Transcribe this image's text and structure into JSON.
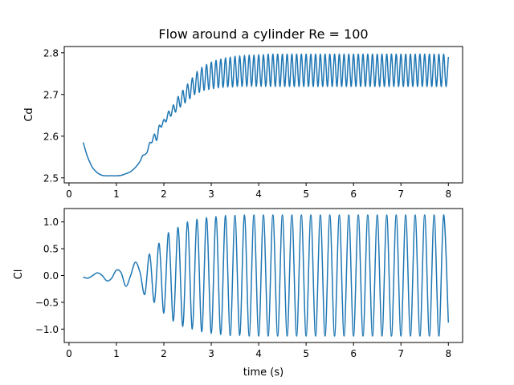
{
  "chart_data": [
    {
      "type": "line",
      "title": "Flow around a cylinder Re = 100",
      "xlabel": "",
      "ylabel": "Cd",
      "xlim": [
        -0.1,
        8.3
      ],
      "ylim": [
        2.488,
        2.815
      ],
      "x_ticks": [
        0,
        1,
        2,
        3,
        4,
        5,
        6,
        7,
        8
      ],
      "y_ticks": [
        2.5,
        2.6,
        2.7,
        2.8
      ],
      "x_tick_labels": [
        "0",
        "1",
        "2",
        "3",
        "4",
        "5",
        "6",
        "7",
        "8"
      ],
      "y_tick_labels": [
        "2.5",
        "2.6",
        "2.7",
        "2.8"
      ],
      "grid": false,
      "series": [
        {
          "color": "#1f77b4",
          "x": [
            0.3,
            0.35,
            0.4,
            0.45,
            0.5,
            0.6,
            0.7,
            0.8,
            0.9,
            1.0,
            1.1,
            1.2,
            1.3,
            1.4,
            1.5,
            1.55,
            1.6,
            1.65,
            1.7,
            1.75,
            1.8,
            1.85,
            1.9,
            1.95,
            2.0,
            2.05,
            2.1,
            2.15,
            2.2,
            2.25,
            2.3,
            2.35,
            2.4,
            2.45,
            2.5,
            2.55,
            2.6,
            2.65,
            2.7,
            2.75,
            2.8,
            2.85,
            2.9,
            2.95,
            3.0,
            3.05,
            3.1,
            3.15,
            3.2,
            3.25,
            3.3,
            3.35,
            3.4,
            3.45,
            3.5,
            3.55,
            3.6,
            3.65,
            3.7,
            3.75,
            3.8,
            3.85,
            3.9,
            3.95,
            4.0,
            4.05,
            4.1,
            4.15,
            4.2,
            4.25,
            4.3,
            4.35,
            4.4,
            4.45,
            4.5,
            4.55,
            4.6,
            4.65,
            4.7,
            4.75,
            4.8,
            4.85,
            4.9,
            4.95,
            5.0,
            5.05,
            5.1,
            5.15,
            5.2,
            5.25,
            5.3,
            5.35,
            5.4,
            5.45,
            5.5,
            5.55,
            5.6,
            5.65,
            5.7,
            5.75,
            5.8,
            5.85,
            5.9,
            5.95,
            6.0,
            6.05,
            6.1,
            6.15,
            6.2,
            6.25,
            6.3,
            6.35,
            6.4,
            6.45,
            6.5,
            6.55,
            6.6,
            6.65,
            6.7,
            6.75,
            6.8,
            6.85,
            6.9,
            6.95,
            7.0,
            7.05,
            7.1,
            7.15,
            7.2,
            7.25,
            7.3,
            7.35,
            7.4,
            7.45,
            7.5,
            7.55,
            7.6,
            7.65,
            7.7,
            7.75,
            7.8,
            7.85,
            7.9,
            7.95,
            8.0
          ],
          "y": [
            2.585,
            2.565,
            2.548,
            2.535,
            2.524,
            2.512,
            2.506,
            2.505,
            2.505,
            2.505,
            2.506,
            2.51,
            2.515,
            2.525,
            2.54,
            2.553,
            2.556,
            2.562,
            2.584,
            2.585,
            2.605,
            2.59,
            2.625,
            2.622,
            2.64,
            2.635,
            2.66,
            2.648,
            2.675,
            2.658,
            2.695,
            2.67,
            2.71,
            2.68,
            2.725,
            2.69,
            2.74,
            2.7,
            2.755,
            2.705,
            2.765,
            2.71,
            2.772,
            2.712,
            2.778,
            2.714,
            2.782,
            2.716,
            2.785,
            2.717,
            2.788,
            2.718,
            2.79,
            2.718,
            2.792,
            2.719,
            2.793,
            2.719,
            2.794,
            2.719,
            2.795,
            2.719,
            2.795,
            2.719,
            2.796,
            2.719,
            2.796,
            2.719,
            2.797,
            2.719,
            2.797,
            2.719,
            2.797,
            2.719,
            2.797,
            2.719,
            2.797,
            2.719,
            2.797,
            2.719,
            2.797,
            2.719,
            2.797,
            2.719,
            2.797,
            2.719,
            2.797,
            2.719,
            2.797,
            2.719,
            2.797,
            2.719,
            2.797,
            2.719,
            2.797,
            2.719,
            2.797,
            2.719,
            2.797,
            2.719,
            2.797,
            2.719,
            2.797,
            2.719,
            2.797,
            2.719,
            2.797,
            2.719,
            2.797,
            2.719,
            2.797,
            2.719,
            2.797,
            2.719,
            2.797,
            2.719,
            2.797,
            2.719,
            2.797,
            2.719,
            2.797,
            2.719,
            2.797,
            2.719,
            2.797,
            2.719,
            2.797,
            2.719,
            2.797,
            2.719,
            2.797,
            2.719,
            2.797,
            2.719,
            2.797,
            2.719,
            2.797,
            2.719,
            2.797,
            2.719,
            2.797,
            2.719,
            2.797,
            2.719,
            2.79
          ]
        }
      ]
    },
    {
      "type": "line",
      "title": "",
      "xlabel": "time (s)",
      "ylabel": "Cl",
      "xlim": [
        -0.1,
        8.3
      ],
      "ylim": [
        -1.25,
        1.25
      ],
      "x_ticks": [
        0,
        1,
        2,
        3,
        4,
        5,
        6,
        7,
        8
      ],
      "y_ticks": [
        -1.0,
        -0.5,
        0.0,
        0.5,
        1.0
      ],
      "x_tick_labels": [
        "0",
        "1",
        "2",
        "3",
        "4",
        "5",
        "6",
        "7",
        "8"
      ],
      "y_tick_labels": [
        "−1.0",
        "−0.5",
        "0.0",
        "0.5",
        "1.0"
      ],
      "grid": false,
      "series": [
        {
          "color": "#1f77b4",
          "x": [
            0.3,
            0.4,
            0.5,
            0.6,
            0.7,
            0.8,
            0.9,
            1.0,
            1.1,
            1.2,
            1.3,
            1.4,
            1.5,
            1.6,
            1.7,
            1.8,
            1.9,
            2.0,
            2.1,
            2.2,
            2.3,
            2.4,
            2.5,
            2.6,
            2.7,
            2.8,
            2.9,
            3.0,
            3.1,
            3.2,
            3.3,
            3.4,
            3.5,
            3.6,
            3.7,
            3.8,
            3.9,
            4.0,
            4.1,
            4.2,
            4.3,
            4.4,
            4.5,
            4.6,
            4.7,
            4.8,
            4.9,
            5.0,
            5.1,
            5.2,
            5.3,
            5.4,
            5.5,
            5.6,
            5.7,
            5.8,
            5.9,
            6.0,
            6.1,
            6.2,
            6.3,
            6.4,
            6.5,
            6.6,
            6.7,
            6.8,
            6.9,
            7.0,
            7.1,
            7.2,
            7.3,
            7.4,
            7.5,
            7.6,
            7.7,
            7.8,
            7.9,
            8.0
          ],
          "y": [
            -0.03,
            -0.05,
            0.0,
            0.05,
            0.0,
            -0.1,
            -0.05,
            0.1,
            0.05,
            -0.2,
            0.0,
            0.25,
            0.05,
            -0.35,
            0.4,
            -0.5,
            0.6,
            -0.7,
            0.8,
            -0.85,
            0.9,
            -0.95,
            1.0,
            -1.0,
            1.05,
            -1.05,
            1.08,
            -1.08,
            1.1,
            -1.1,
            1.12,
            -1.12,
            1.12,
            -1.12,
            1.13,
            -1.13,
            1.13,
            -1.13,
            1.13,
            -1.13,
            1.13,
            -1.13,
            1.13,
            -1.13,
            1.13,
            -1.13,
            1.13,
            -1.13,
            1.13,
            -1.13,
            1.13,
            -1.13,
            1.13,
            -1.13,
            1.13,
            -1.13,
            1.13,
            -1.13,
            1.13,
            -1.13,
            1.13,
            -1.13,
            1.13,
            -1.13,
            1.13,
            -1.13,
            1.13,
            -1.13,
            1.13,
            -1.13,
            1.13,
            -1.13,
            1.13,
            -1.13,
            1.13,
            -1.13,
            1.13,
            -0.88
          ]
        }
      ]
    }
  ]
}
